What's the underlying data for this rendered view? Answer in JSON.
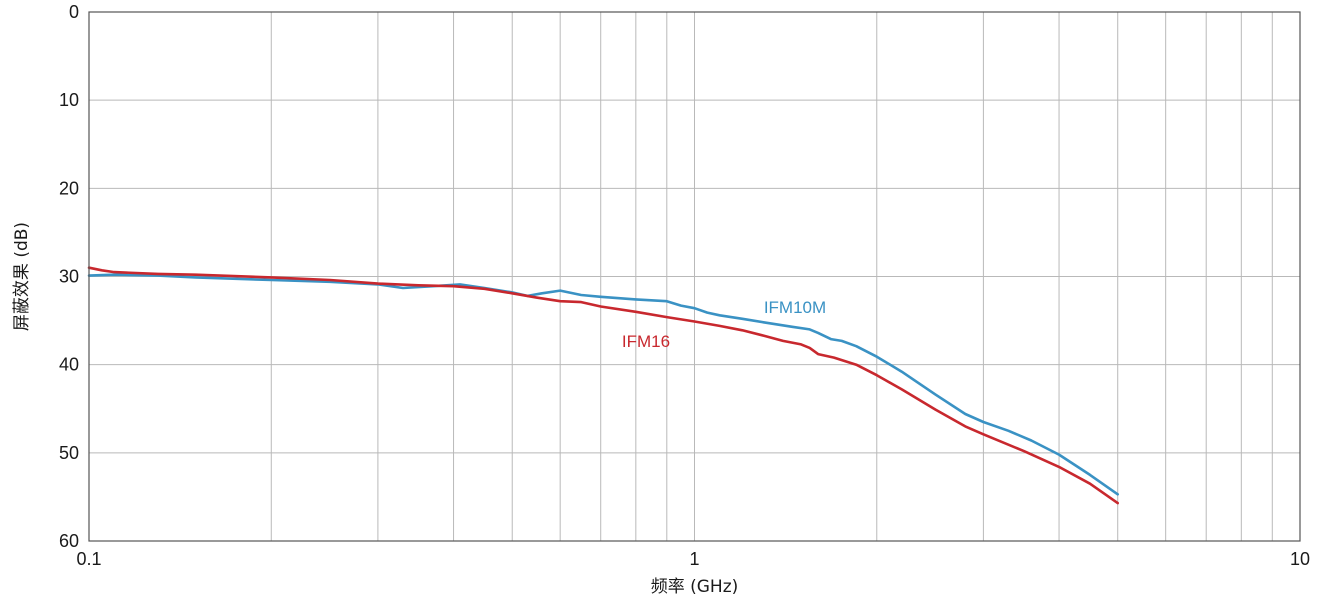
{
  "chart_data": {
    "type": "line",
    "xlabel": "频率 (GHz)",
    "ylabel": "屏蔽效果 (dB)",
    "x_scale": "log",
    "xlim": [
      0.1,
      10
    ],
    "ylim": [
      0,
      60
    ],
    "y_inverted": true,
    "grid": true,
    "x_tick_labels": [
      {
        "value": 0.1,
        "label": "0.1"
      },
      {
        "value": 1,
        "label": "1"
      },
      {
        "value": 10,
        "label": "10"
      }
    ],
    "y_tick_labels": [
      {
        "value": 0,
        "label": "0"
      },
      {
        "value": 10,
        "label": "10"
      },
      {
        "value": 20,
        "label": "20"
      },
      {
        "value": 30,
        "label": "30"
      },
      {
        "value": 40,
        "label": "40"
      },
      {
        "value": 50,
        "label": "50"
      },
      {
        "value": 60,
        "label": "60"
      }
    ],
    "series": [
      {
        "name": "IFM10M",
        "color": "#3a92c4",
        "points": [
          [
            0.1,
            29.9
          ],
          [
            0.11,
            29.8
          ],
          [
            0.13,
            29.9
          ],
          [
            0.15,
            30.1
          ],
          [
            0.2,
            30.4
          ],
          [
            0.25,
            30.6
          ],
          [
            0.3,
            30.9
          ],
          [
            0.33,
            31.3
          ],
          [
            0.37,
            31.1
          ],
          [
            0.41,
            30.9
          ],
          [
            0.45,
            31.3
          ],
          [
            0.5,
            31.8
          ],
          [
            0.53,
            32.2
          ],
          [
            0.56,
            31.9
          ],
          [
            0.6,
            31.6
          ],
          [
            0.65,
            32.1
          ],
          [
            0.7,
            32.3
          ],
          [
            0.8,
            32.6
          ],
          [
            0.9,
            32.8
          ],
          [
            0.95,
            33.3
          ],
          [
            1.0,
            33.6
          ],
          [
            1.05,
            34.1
          ],
          [
            1.1,
            34.4
          ],
          [
            1.2,
            34.8
          ],
          [
            1.3,
            35.2
          ],
          [
            1.45,
            35.7
          ],
          [
            1.55,
            36.0
          ],
          [
            1.6,
            36.4
          ],
          [
            1.68,
            37.1
          ],
          [
            1.75,
            37.3
          ],
          [
            1.85,
            37.9
          ],
          [
            2.0,
            39.1
          ],
          [
            2.2,
            40.8
          ],
          [
            2.5,
            43.4
          ],
          [
            2.8,
            45.6
          ],
          [
            3.0,
            46.5
          ],
          [
            3.3,
            47.5
          ],
          [
            3.6,
            48.6
          ],
          [
            4.0,
            50.2
          ],
          [
            4.5,
            52.5
          ],
          [
            5.0,
            54.7
          ]
        ]
      },
      {
        "name": "IFM16",
        "color": "#c8282e",
        "points": [
          [
            0.1,
            29.0
          ],
          [
            0.105,
            29.3
          ],
          [
            0.11,
            29.5
          ],
          [
            0.13,
            29.7
          ],
          [
            0.15,
            29.8
          ],
          [
            0.2,
            30.1
          ],
          [
            0.25,
            30.4
          ],
          [
            0.3,
            30.8
          ],
          [
            0.35,
            31.0
          ],
          [
            0.4,
            31.1
          ],
          [
            0.45,
            31.4
          ],
          [
            0.5,
            31.9
          ],
          [
            0.55,
            32.4
          ],
          [
            0.6,
            32.8
          ],
          [
            0.65,
            32.9
          ],
          [
            0.7,
            33.4
          ],
          [
            0.8,
            34.0
          ],
          [
            0.9,
            34.6
          ],
          [
            1.0,
            35.1
          ],
          [
            1.1,
            35.6
          ],
          [
            1.2,
            36.1
          ],
          [
            1.3,
            36.7
          ],
          [
            1.4,
            37.3
          ],
          [
            1.5,
            37.7
          ],
          [
            1.55,
            38.1
          ],
          [
            1.6,
            38.8
          ],
          [
            1.7,
            39.2
          ],
          [
            1.85,
            40.0
          ],
          [
            2.0,
            41.2
          ],
          [
            2.2,
            42.8
          ],
          [
            2.5,
            45.1
          ],
          [
            2.8,
            47.0
          ],
          [
            3.0,
            47.9
          ],
          [
            3.5,
            49.8
          ],
          [
            4.0,
            51.6
          ],
          [
            4.5,
            53.5
          ],
          [
            5.0,
            55.7
          ]
        ]
      }
    ]
  }
}
